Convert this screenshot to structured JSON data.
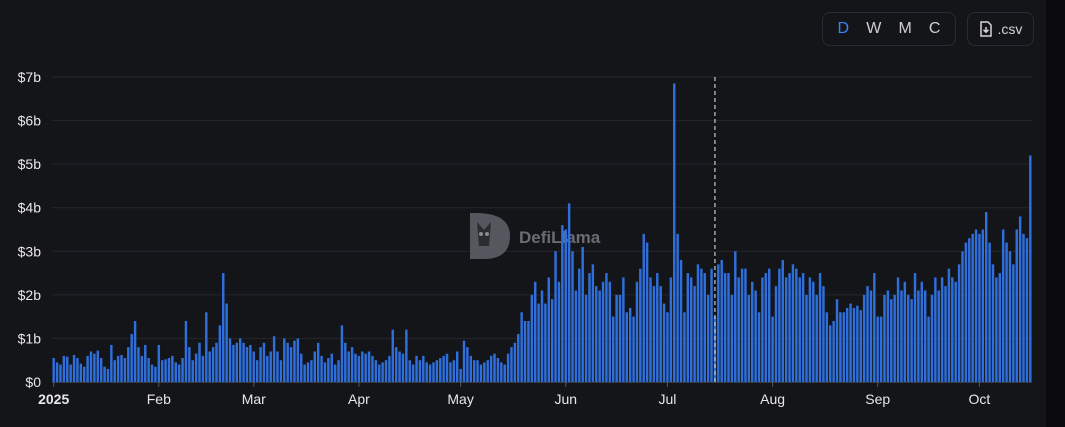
{
  "controls": {
    "granularity": [
      {
        "label": "D",
        "active": true
      },
      {
        "label": "W",
        "active": false
      },
      {
        "label": "M",
        "active": false
      },
      {
        "label": "C",
        "active": false
      }
    ],
    "csv_label": ".csv"
  },
  "watermark": "DefiLlama",
  "colors": {
    "bar": "#2f6fdc",
    "grid": "#24262c",
    "cursor": "#c8c8c8"
  },
  "chart_data": {
    "type": "bar",
    "title": "",
    "xlabel": "",
    "ylabel": "",
    "x_start": "2025-01-01",
    "ylim": [
      0,
      7
    ],
    "yticks": [
      {
        "v": 0,
        "label": "$0"
      },
      {
        "v": 1,
        "label": "$1b"
      },
      {
        "v": 2,
        "label": "$2b"
      },
      {
        "v": 3,
        "label": "$3b"
      },
      {
        "v": 4,
        "label": "$4b"
      },
      {
        "v": 5,
        "label": "$5b"
      },
      {
        "v": 6,
        "label": "$6b"
      },
      {
        "v": 7,
        "label": "$7b"
      }
    ],
    "xticks": [
      {
        "date": "2025-01-01",
        "label": "2025",
        "bold": true
      },
      {
        "date": "2025-02-01",
        "label": "Feb",
        "bold": false
      },
      {
        "date": "2025-03-01",
        "label": "Mar",
        "bold": false
      },
      {
        "date": "2025-04-01",
        "label": "Apr",
        "bold": false
      },
      {
        "date": "2025-05-01",
        "label": "May",
        "bold": false
      },
      {
        "date": "2025-06-01",
        "label": "Jun",
        "bold": false
      },
      {
        "date": "2025-07-01",
        "label": "Jul",
        "bold": false
      },
      {
        "date": "2025-08-01",
        "label": "Aug",
        "bold": false
      },
      {
        "date": "2025-09-01",
        "label": "Sep",
        "bold": false
      },
      {
        "date": "2025-10-01",
        "label": "Oct",
        "bold": false
      }
    ],
    "hover_date": "2025-07-15",
    "grid": true,
    "legend": "none",
    "values": [
      0.55,
      0.45,
      0.4,
      0.6,
      0.58,
      0.4,
      0.62,
      0.55,
      0.42,
      0.35,
      0.6,
      0.7,
      0.65,
      0.72,
      0.55,
      0.35,
      0.3,
      0.85,
      0.5,
      0.6,
      0.62,
      0.55,
      0.8,
      1.1,
      1.4,
      0.8,
      0.6,
      0.85,
      0.55,
      0.4,
      0.35,
      0.85,
      0.5,
      0.52,
      0.55,
      0.6,
      0.45,
      0.4,
      0.55,
      1.4,
      0.8,
      0.5,
      0.65,
      0.9,
      0.6,
      1.6,
      0.7,
      0.8,
      0.9,
      1.3,
      2.5,
      1.8,
      1.0,
      0.85,
      0.9,
      1.0,
      0.9,
      0.8,
      0.85,
      0.7,
      0.5,
      0.8,
      0.9,
      0.6,
      0.7,
      1.05,
      0.7,
      0.5,
      1.0,
      0.9,
      0.8,
      0.95,
      1.0,
      0.65,
      0.4,
      0.45,
      0.5,
      0.7,
      0.9,
      0.6,
      0.45,
      0.55,
      0.65,
      0.4,
      0.5,
      1.3,
      0.9,
      0.7,
      0.8,
      0.65,
      0.6,
      0.7,
      0.65,
      0.7,
      0.6,
      0.5,
      0.4,
      0.45,
      0.5,
      0.6,
      1.2,
      0.8,
      0.7,
      0.65,
      1.2,
      0.5,
      0.4,
      0.6,
      0.5,
      0.6,
      0.45,
      0.4,
      0.45,
      0.5,
      0.55,
      0.6,
      0.65,
      0.45,
      0.5,
      0.7,
      0.3,
      0.95,
      0.8,
      0.6,
      0.5,
      0.5,
      0.4,
      0.45,
      0.5,
      0.6,
      0.65,
      0.55,
      0.45,
      0.4,
      0.65,
      0.8,
      0.9,
      1.1,
      1.6,
      1.4,
      1.4,
      2.0,
      2.3,
      1.8,
      2.1,
      1.8,
      2.4,
      1.9,
      3.0,
      2.3,
      3.6,
      3.5,
      4.1,
      3.0,
      2.1,
      2.6,
      3.1,
      2.0,
      2.5,
      2.7,
      2.2,
      2.1,
      2.3,
      2.5,
      2.3,
      1.5,
      2.0,
      2.0,
      2.4,
      1.6,
      1.7,
      1.5,
      2.3,
      2.6,
      3.4,
      3.2,
      2.4,
      2.2,
      2.5,
      2.2,
      1.8,
      1.6,
      2.4,
      6.85,
      3.4,
      2.8,
      1.6,
      2.5,
      2.4,
      2.2,
      2.7,
      2.6,
      2.5,
      2.0,
      2.6,
      1.5,
      2.7,
      2.8,
      2.5,
      2.5,
      2.0,
      3.0,
      2.4,
      2.6,
      2.6,
      2.0,
      2.3,
      2.1,
      1.6,
      2.4,
      2.5,
      2.6,
      1.5,
      2.2,
      2.6,
      2.8,
      2.4,
      2.5,
      2.7,
      2.6,
      2.4,
      2.5,
      2.0,
      2.4,
      2.3,
      2.0,
      2.5,
      2.2,
      1.6,
      1.3,
      1.4,
      1.9,
      1.6,
      1.6,
      1.7,
      1.8,
      1.7,
      1.75,
      1.65,
      2.0,
      2.2,
      2.1,
      2.5,
      1.5,
      1.5,
      2.0,
      2.1,
      1.9,
      2.0,
      2.4,
      2.1,
      2.3,
      2.0,
      1.9,
      2.5,
      2.1,
      2.3,
      2.1,
      1.5,
      2.0,
      2.4,
      2.1,
      2.4,
      2.2,
      2.6,
      2.4,
      2.3,
      2.7,
      3.0,
      3.2,
      3.3,
      3.4,
      3.5,
      3.4,
      3.5,
      3.9,
      3.2,
      2.7,
      2.4,
      2.5,
      3.5,
      3.2,
      3.0,
      2.7,
      3.5,
      3.8,
      3.4,
      3.3,
      5.2
    ]
  }
}
